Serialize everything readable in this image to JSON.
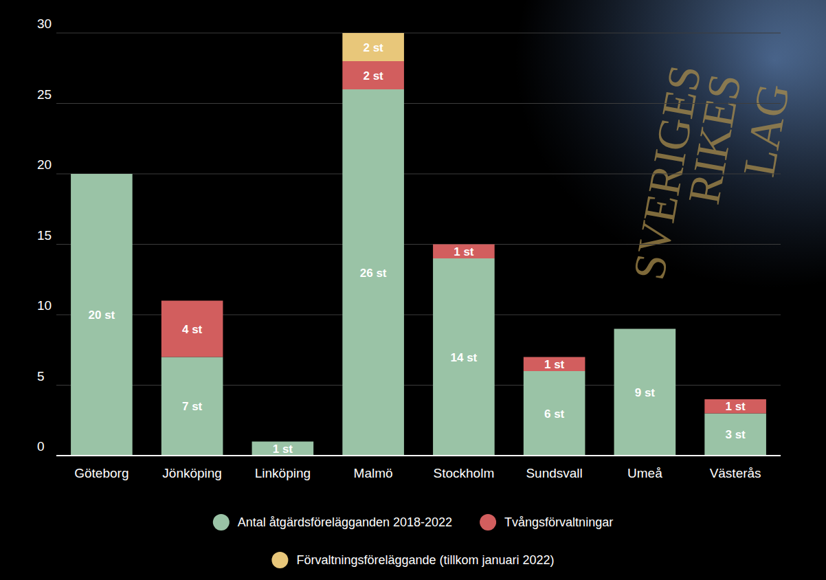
{
  "chart_data": {
    "type": "bar",
    "stacked": true,
    "data_labels": true,
    "grid": true,
    "legend": "bottom",
    "categories": [
      "Göteborg",
      "Jönköping",
      "Linköping",
      "Malmö",
      "Stockholm",
      "Sundsvall",
      "Umeå",
      "Västerås"
    ],
    "ylim": [
      0,
      30
    ],
    "yticks": [
      0,
      5,
      10,
      15,
      20,
      25,
      30
    ],
    "annotations": [
      "SVERIGES",
      "RIKES",
      "LAG"
    ],
    "series": [
      {
        "name": "Antal åtgärdsförelägganden 2018-2022",
        "color": "#9ac3a6",
        "values": [
          20,
          7,
          1,
          26,
          14,
          6,
          9,
          3
        ],
        "value_labels": [
          "20 st",
          "7 st",
          "1 st",
          "26 st",
          "14 st",
          "6 st",
          "9 st",
          "3 st"
        ]
      },
      {
        "name": "Tvångsförvaltningar",
        "color": "#d25e5e",
        "values": [
          null,
          4,
          null,
          2,
          1,
          1,
          null,
          1
        ],
        "value_labels": [
          null,
          "4 st",
          null,
          "2 st",
          "1 st",
          "1 st",
          null,
          "1 st"
        ]
      },
      {
        "name": "Förvaltningsföreläggande (tillkom januari 2022)",
        "color": "#e8c77a",
        "values": [
          null,
          null,
          null,
          2,
          null,
          null,
          null,
          null
        ],
        "value_labels": [
          null,
          null,
          null,
          "2 st",
          null,
          null,
          null,
          null
        ]
      }
    ]
  }
}
